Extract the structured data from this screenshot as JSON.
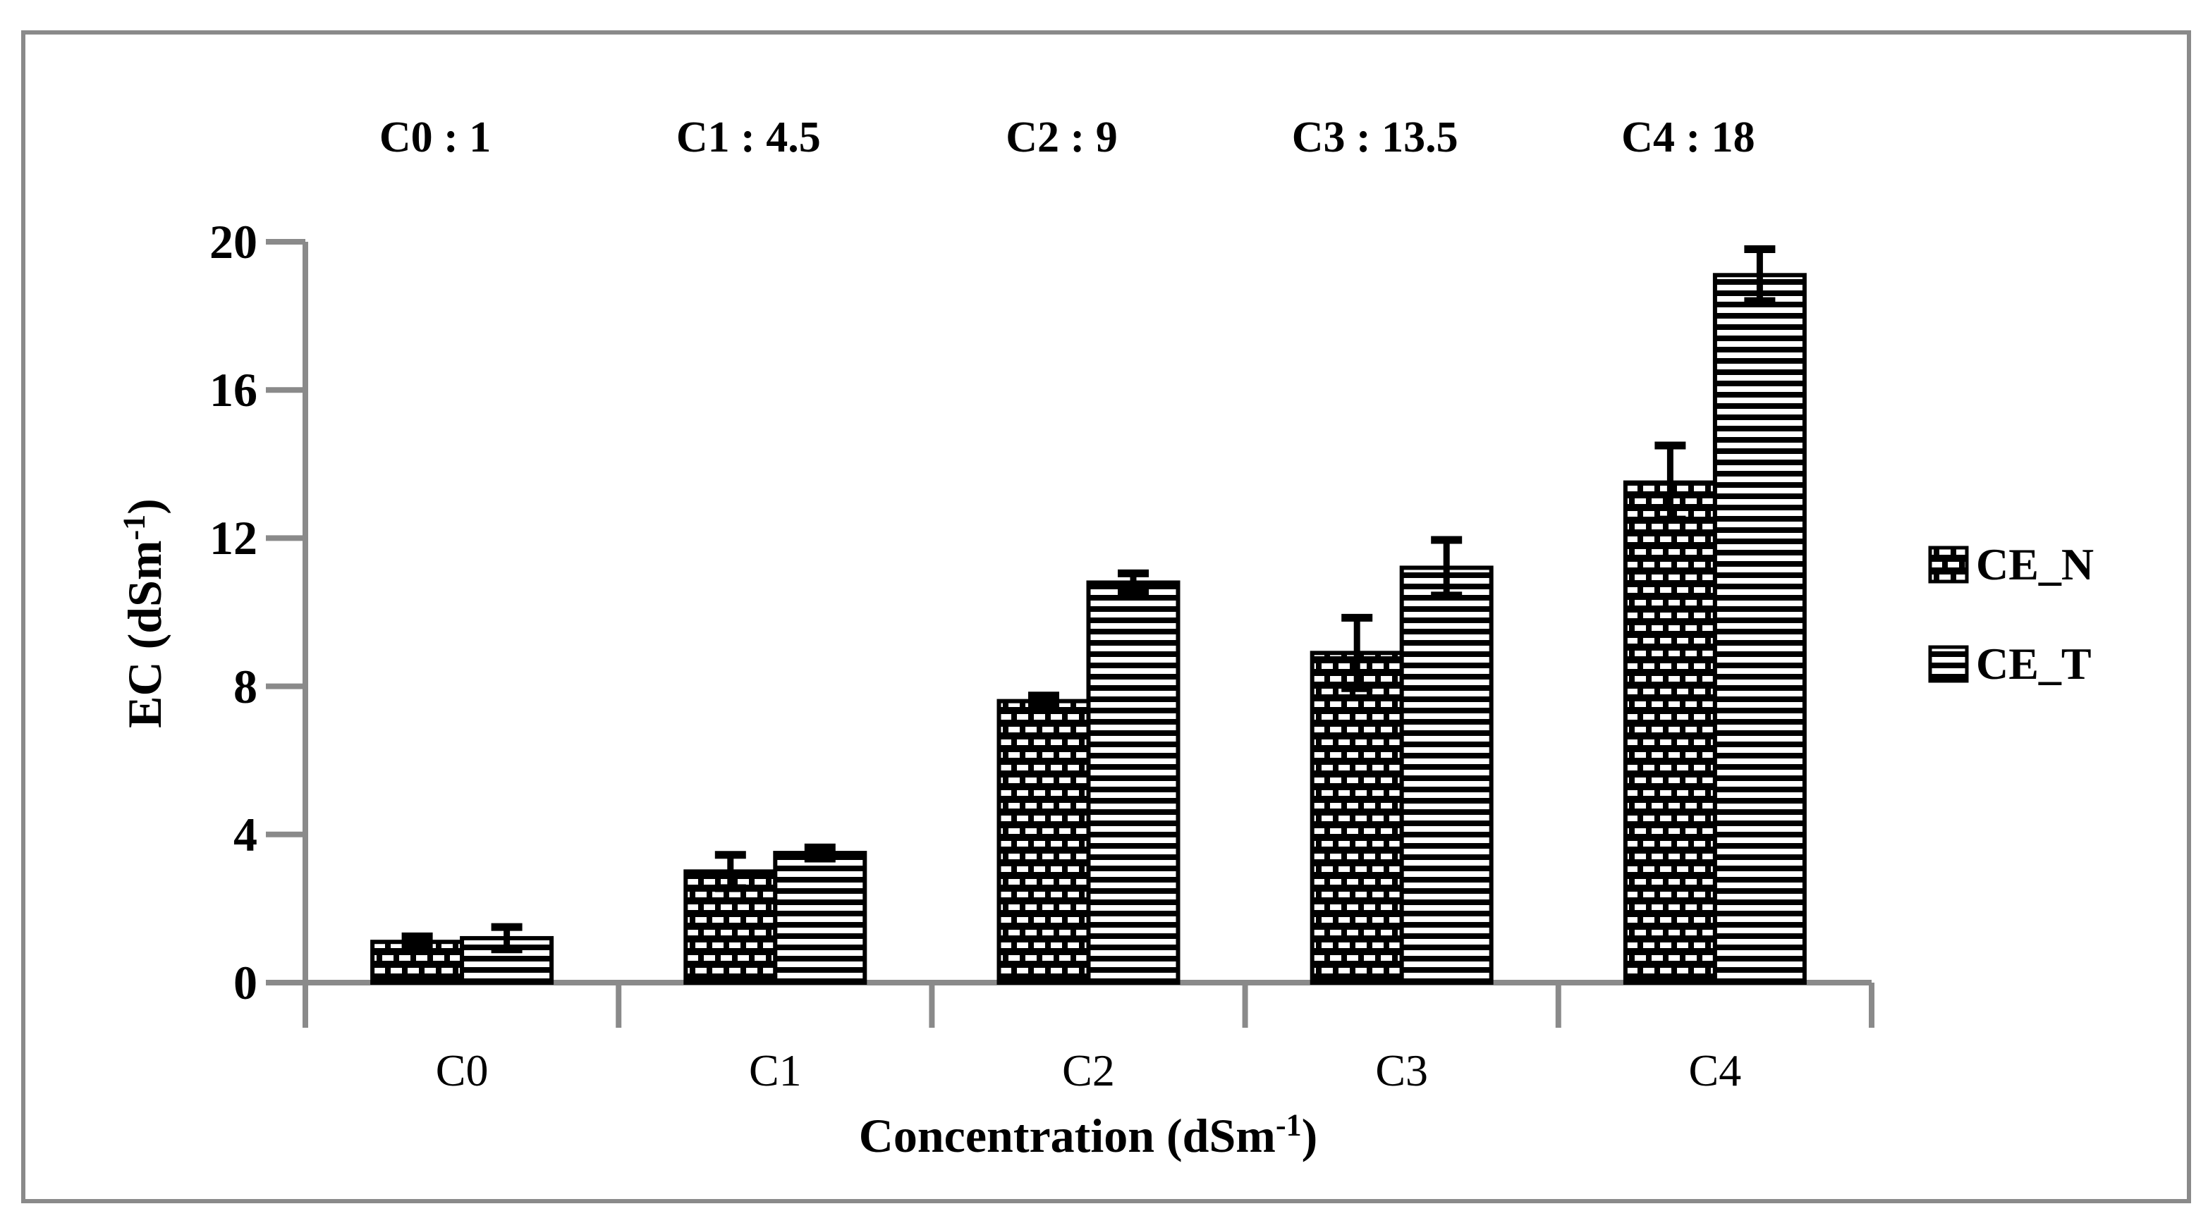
{
  "chart_data": {
    "type": "bar",
    "title": "",
    "xlabel": {
      "text": "Concentration (dSm",
      "sup": "-1",
      "close": ")"
    },
    "ylabel": {
      "text": "EC (dSm",
      "sup": "-1",
      "close": ")"
    },
    "categories": [
      "C0",
      "C1",
      "C2",
      "C3",
      "C4"
    ],
    "annotations": [
      "C0 : 1",
      "C1 : 4.5",
      "C2 : 9",
      "C3 : 13.5",
      "C4 : 18"
    ],
    "yticks": [
      0,
      4,
      8,
      12,
      16,
      20
    ],
    "ylim": [
      0,
      20
    ],
    "grid": false,
    "legend_position": "right",
    "series": [
      {
        "name": "CE_N",
        "pattern": "checker",
        "values": [
          1.1,
          3.0,
          7.6,
          8.9,
          13.5
        ],
        "errors": [
          0.15,
          0.45,
          0.15,
          0.95,
          1.0
        ]
      },
      {
        "name": "CE_T",
        "pattern": "hstripes",
        "values": [
          1.2,
          3.5,
          10.8,
          11.2,
          19.1
        ],
        "errors": [
          0.3,
          0.15,
          0.25,
          0.75,
          0.7
        ]
      }
    ]
  },
  "colors": {
    "axis": "#8a8a8a",
    "bar": "#000000",
    "background": "#ffffff",
    "frame_border": "#8a8a8a",
    "text": "#000000"
  }
}
